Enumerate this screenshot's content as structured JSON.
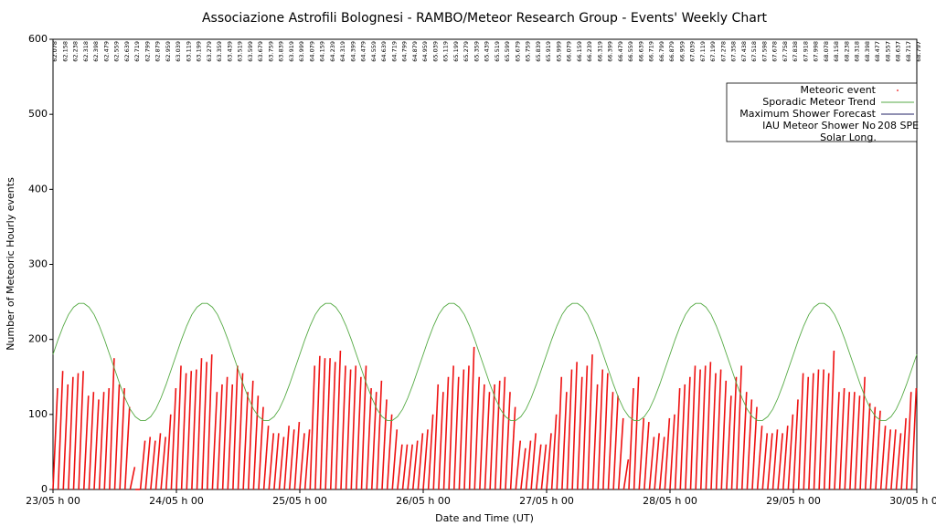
{
  "chart_data": {
    "type": "line",
    "title": "Associazione Astrofili Bolognesi - RAMBO/Meteor Research Group - Events' Weekly Chart",
    "x_label": "Date and Time (UT)",
    "y_label": "Number of Meteoric Hourly events",
    "xlim": [
      0,
      168
    ],
    "xticks": [
      {
        "value": 0,
        "label": "23/05 h 00"
      },
      {
        "value": 24,
        "label": "24/05 h 00"
      },
      {
        "value": 48,
        "label": "25/05 h 00"
      },
      {
        "value": 72,
        "label": "26/05 h 00"
      },
      {
        "value": 96,
        "label": "27/05 h 00"
      },
      {
        "value": 120,
        "label": "28/05 h 00"
      },
      {
        "value": 144,
        "label": "29/05 h 00"
      },
      {
        "value": 168,
        "label": "30/05 h 00"
      }
    ],
    "ylim": [
      0,
      600
    ],
    "yticks": [
      0,
      100,
      200,
      300,
      400,
      500,
      600
    ],
    "series": [
      {
        "name": "Meteoric event",
        "color": "#ee1111",
        "values": [
          135,
          158,
          140,
          150,
          155,
          158,
          125,
          130,
          120,
          130,
          135,
          175,
          140,
          135,
          110,
          30,
          0,
          65,
          70,
          65,
          75,
          70,
          100,
          135,
          165,
          155,
          158,
          160,
          175,
          170,
          180,
          130,
          140,
          150,
          140,
          165,
          155,
          130,
          145,
          125,
          110,
          85,
          75,
          75,
          70,
          85,
          80,
          90,
          75,
          80,
          165,
          178,
          175,
          175,
          170,
          185,
          165,
          160,
          165,
          150,
          165,
          135,
          130,
          145,
          120,
          100,
          80,
          60,
          60,
          60,
          65,
          75,
          80,
          100,
          140,
          130,
          150,
          165,
          150,
          160,
          165,
          190,
          150,
          140,
          130,
          140,
          145,
          150,
          130,
          110,
          65,
          55,
          65,
          75,
          60,
          60,
          75,
          100,
          150,
          130,
          160,
          170,
          150,
          165,
          180,
          140,
          160,
          155,
          130,
          125,
          95,
          40,
          135,
          150,
          95,
          90,
          70,
          75,
          70,
          95,
          100,
          135,
          140,
          150,
          165,
          160,
          165,
          170,
          155,
          160,
          145,
          125,
          150,
          165,
          130,
          120,
          110,
          85,
          75,
          75,
          80,
          75,
          85,
          100,
          120,
          155,
          150,
          155,
          160,
          160,
          155,
          185,
          130,
          135,
          130,
          130,
          125,
          150,
          115,
          110,
          105,
          85,
          80,
          80,
          75,
          95,
          130,
          135
        ]
      },
      {
        "name": "Sporadic Meteor Trend",
        "color": "#55aa44",
        "values": [
          180,
          200,
          218,
          233,
          243,
          248,
          248,
          243,
          233,
          218,
          200,
          180,
          160,
          140,
          122,
          107,
          97,
          92,
          92,
          97,
          107,
          122,
          140,
          160,
          180,
          200,
          218,
          233,
          243,
          248,
          248,
          243,
          233,
          218,
          200,
          180,
          160,
          140,
          122,
          107,
          97,
          92,
          92,
          97,
          107,
          122,
          140,
          160,
          180,
          200,
          218,
          233,
          243,
          248,
          248,
          243,
          233,
          218,
          200,
          180,
          160,
          140,
          122,
          107,
          97,
          92,
          92,
          97,
          107,
          122,
          140,
          160,
          180,
          200,
          218,
          233,
          243,
          248,
          248,
          243,
          233,
          218,
          200,
          180,
          160,
          140,
          122,
          107,
          97,
          92,
          92,
          97,
          107,
          122,
          140,
          160,
          180,
          200,
          218,
          233,
          243,
          248,
          248,
          243,
          233,
          218,
          200,
          180,
          160,
          140,
          122,
          107,
          97,
          92,
          92,
          97,
          107,
          122,
          140,
          160,
          180,
          200,
          218,
          233,
          243,
          248,
          248,
          243,
          233,
          218,
          200,
          180,
          160,
          140,
          122,
          107,
          97,
          92,
          92,
          97,
          107,
          122,
          140,
          160,
          180,
          200,
          218,
          233,
          243,
          248,
          248,
          243,
          233,
          218,
          200,
          180,
          160,
          140,
          122,
          107,
          97,
          92,
          92,
          97,
          107,
          122,
          140,
          160,
          180
        ]
      },
      {
        "name": "Maximum Shower Forecast",
        "color": "#222266"
      }
    ],
    "shower": {
      "name": "IAU Meteor Shower No",
      "code": "208 SPE"
    },
    "solar_long": {
      "name": "Solar Long.",
      "color": "#cc3333",
      "values": [
        62.078,
        62.158,
        62.238,
        62.318,
        62.398,
        62.479,
        62.559,
        62.639,
        62.719,
        62.799,
        62.879,
        62.959,
        63.039,
        63.119,
        63.199,
        63.279,
        63.359,
        63.439,
        63.519,
        63.599,
        63.679,
        63.759,
        63.839,
        63.919,
        63.999,
        64.079,
        64.159,
        64.239,
        64.319,
        64.399,
        64.479,
        64.559,
        64.639,
        64.719,
        64.799,
        64.879,
        64.959,
        65.039,
        65.119,
        65.199,
        65.279,
        65.359,
        65.439,
        65.519,
        65.599,
        65.679,
        65.759,
        65.839,
        65.919,
        65.999,
        66.079,
        66.159,
        66.239,
        66.319,
        66.399,
        66.479,
        66.559,
        66.639,
        66.719,
        66.799,
        66.879,
        66.959,
        67.039,
        67.119,
        67.199,
        67.278,
        67.358,
        67.438,
        67.518,
        67.598,
        67.678,
        67.758,
        67.838,
        67.918,
        67.998,
        68.078,
        68.158,
        68.238,
        68.318,
        68.398,
        68.477,
        68.557,
        68.637,
        68.717,
        68.797
      ]
    }
  }
}
